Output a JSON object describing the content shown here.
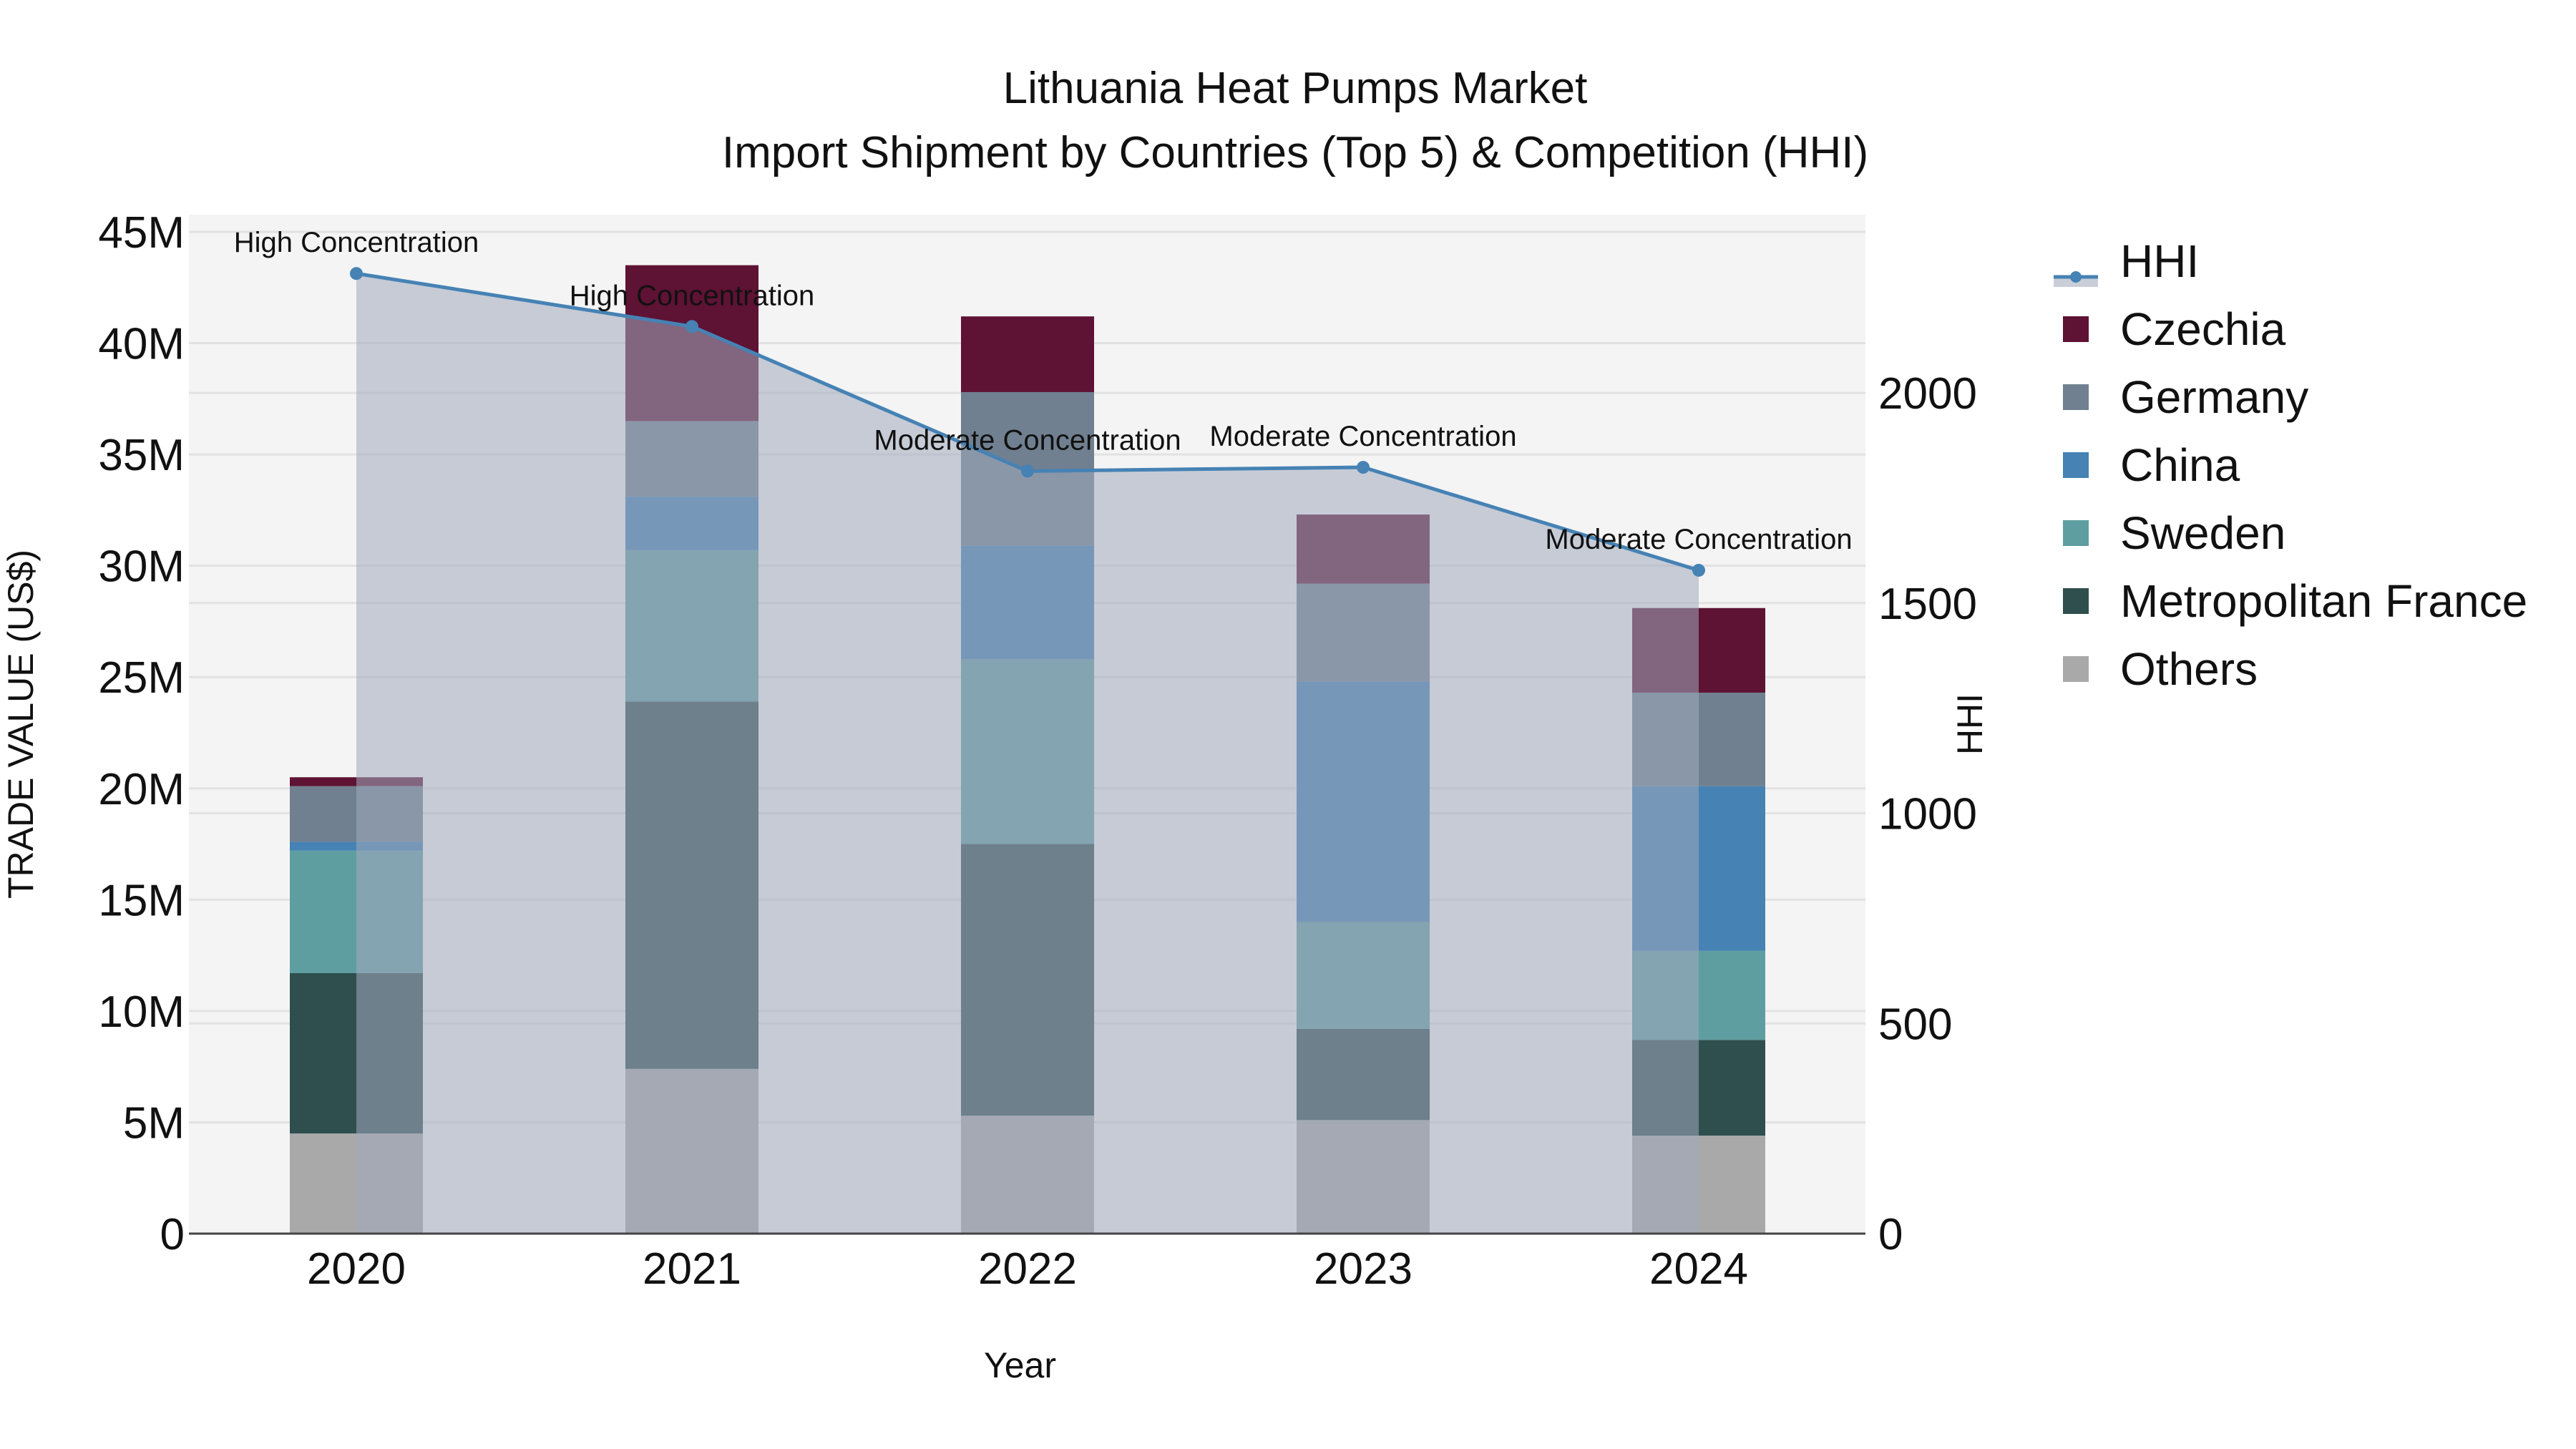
{
  "title": {
    "line1": "Lithuania Heat Pumps Market",
    "line2": "Import Shipment by Countries (Top 5) & Competition (HHI)"
  },
  "axes": {
    "x_title": "Year",
    "y_left_title": "TRADE VALUE (US$)",
    "y_right_title": "HHI",
    "y_left_ticks": [
      "0",
      "5M",
      "10M",
      "15M",
      "20M",
      "25M",
      "30M",
      "35M",
      "40M",
      "45M"
    ],
    "y_right_ticks": [
      "0",
      "500",
      "1000",
      "1500",
      "2000"
    ]
  },
  "legend": {
    "items": [
      {
        "label": "HHI",
        "kind": "line",
        "color": "#4682B4",
        "fill": "#C9CED8"
      },
      {
        "label": "Czechia",
        "kind": "bar",
        "color": "#5E1234"
      },
      {
        "label": "Germany",
        "kind": "bar",
        "color": "#708090"
      },
      {
        "label": "China",
        "kind": "bar",
        "color": "#4682B4"
      },
      {
        "label": "Sweden",
        "kind": "bar",
        "color": "#5F9EA0"
      },
      {
        "label": "Metropolitan France",
        "kind": "bar",
        "color": "#2F4F4F"
      },
      {
        "label": "Others",
        "kind": "bar",
        "color": "#A9A9A9"
      }
    ]
  },
  "chart_data": {
    "type": "bar",
    "stacked": true,
    "title": "Lithuania Heat Pumps Market — Import Shipment by Countries (Top 5) & Competition (HHI)",
    "xlabel": "Year",
    "ylabel": "TRADE VALUE (US$)",
    "y2label": "HHI",
    "categories": [
      "2020",
      "2021",
      "2022",
      "2023",
      "2024"
    ],
    "ylim": [
      0,
      45770000
    ],
    "y2lim": [
      0,
      2424
    ],
    "grid": true,
    "legend_position": "right",
    "series": [
      {
        "name": "Others",
        "color": "#A9A9A9",
        "values": [
          4500000,
          7400000,
          5300000,
          5100000,
          4400000
        ]
      },
      {
        "name": "Metropolitan France",
        "color": "#2F4F4F",
        "values": [
          7200000,
          16500000,
          12200000,
          4100000,
          4300000
        ]
      },
      {
        "name": "Sweden",
        "color": "#5F9EA0",
        "values": [
          5500000,
          6800000,
          8300000,
          4800000,
          4000000
        ]
      },
      {
        "name": "China",
        "color": "#4682B4",
        "values": [
          400000,
          2400000,
          5100000,
          10800000,
          7400000
        ]
      },
      {
        "name": "Germany",
        "color": "#708090",
        "values": [
          2500000,
          3400000,
          6900000,
          4400000,
          4200000
        ]
      },
      {
        "name": "Czechia",
        "color": "#5E1234",
        "values": [
          400000,
          7000000,
          3400000,
          3100000,
          3800000
        ]
      }
    ],
    "line_series": {
      "name": "HHI",
      "axis": "right",
      "type": "area-line",
      "color": "#4682B4",
      "fill": "rgba(160,170,190,0.55)",
      "values": [
        2284,
        2158,
        1814,
        1823,
        1578
      ],
      "annotations": [
        "High Concentration",
        "High Concentration",
        "Moderate Concentration",
        "Moderate Concentration",
        "Moderate Concentration"
      ]
    },
    "totals": [
      20500000,
      43500000,
      41200000,
      32300000,
      28100000
    ]
  }
}
